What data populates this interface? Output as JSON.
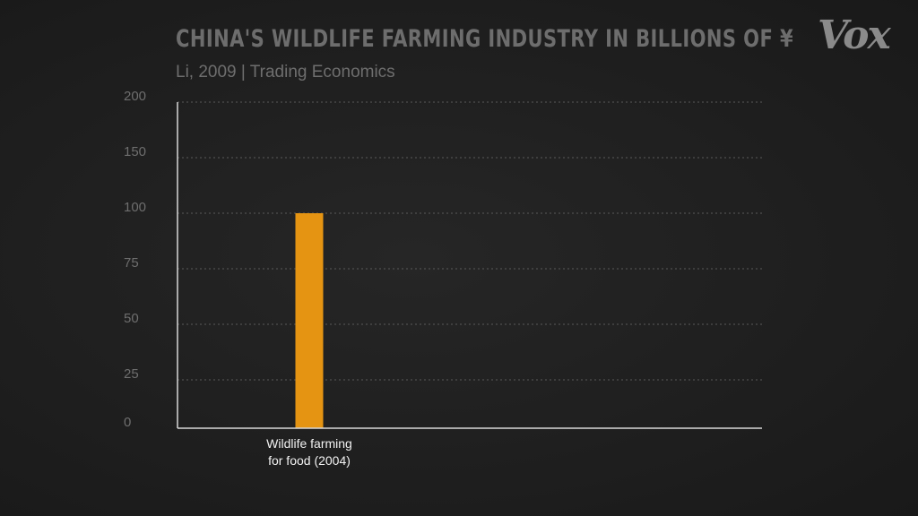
{
  "header": {
    "title": "China's wildlife farming industry in billions of ¥",
    "source": "Li, 2009 | Trading Economics",
    "logo_text": "Vox"
  },
  "colors": {
    "background": "#1e1e1e",
    "bar": "#e59412",
    "axis": "#d8d8d8",
    "grid": "#5a5a5a",
    "tick_text": "#6e6e6e",
    "category_text": "#f2f2f2"
  },
  "chart_data": {
    "type": "bar",
    "title": "China's wildlife farming industry in billions of ¥",
    "subtitle": "Li, 2009 | Trading Economics",
    "categories": [
      [
        "Wildlife farming",
        "for food (2004)"
      ]
    ],
    "values": [
      100
    ],
    "yticks": [
      0,
      25,
      50,
      75,
      100,
      150,
      200
    ],
    "ylim": [
      0,
      200
    ],
    "grid": true,
    "legend": "none",
    "bar_color": "#e59412"
  }
}
